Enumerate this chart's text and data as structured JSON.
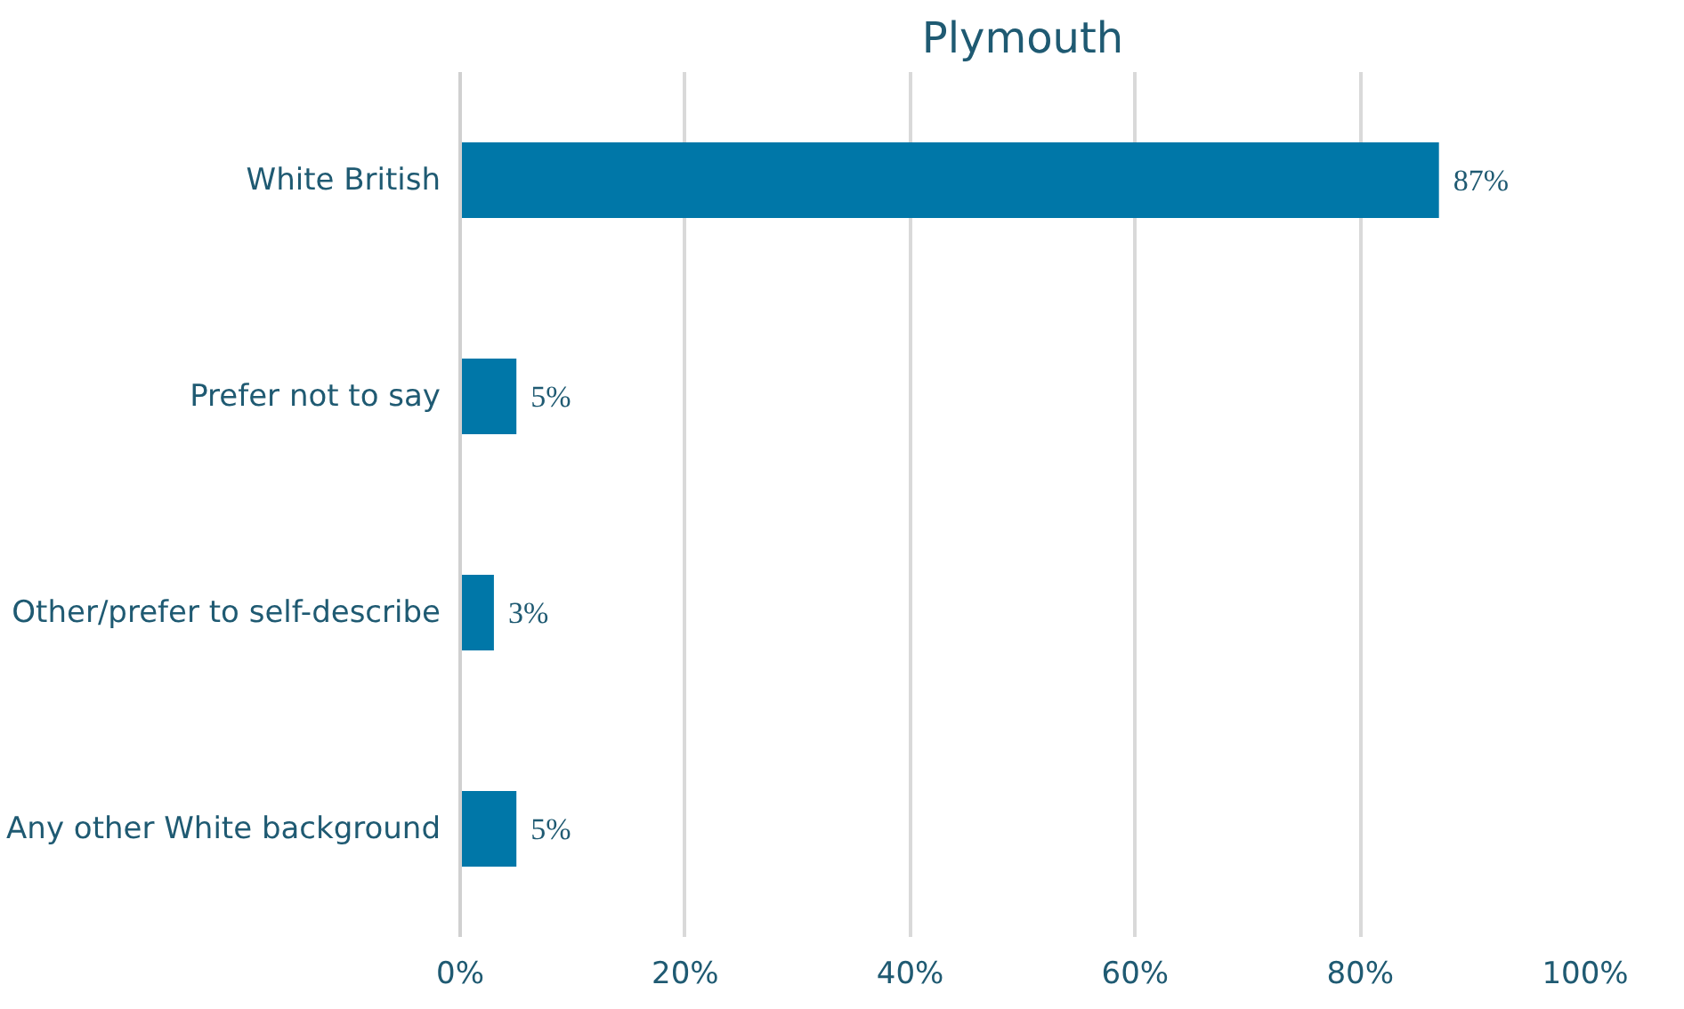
{
  "chart_data": {
    "type": "bar",
    "orientation": "horizontal",
    "title": "Plymouth",
    "categories": [
      "White British",
      "Prefer not to say",
      "Other/prefer to self-describe",
      "Any other White background"
    ],
    "values": [
      87,
      5,
      3,
      5
    ],
    "value_labels": [
      "87%",
      "5%",
      "3%",
      "5%"
    ],
    "color": "#0077a8",
    "xlim": [
      0,
      100
    ],
    "xticks": [
      {
        "value": 0,
        "label": "0%"
      },
      {
        "value": 20,
        "label": "20%"
      },
      {
        "value": 40,
        "label": "40%"
      },
      {
        "value": 60,
        "label": "60%"
      },
      {
        "value": 80,
        "label": "80%"
      },
      {
        "value": 100,
        "label": "100%"
      }
    ],
    "grid": "x"
  }
}
